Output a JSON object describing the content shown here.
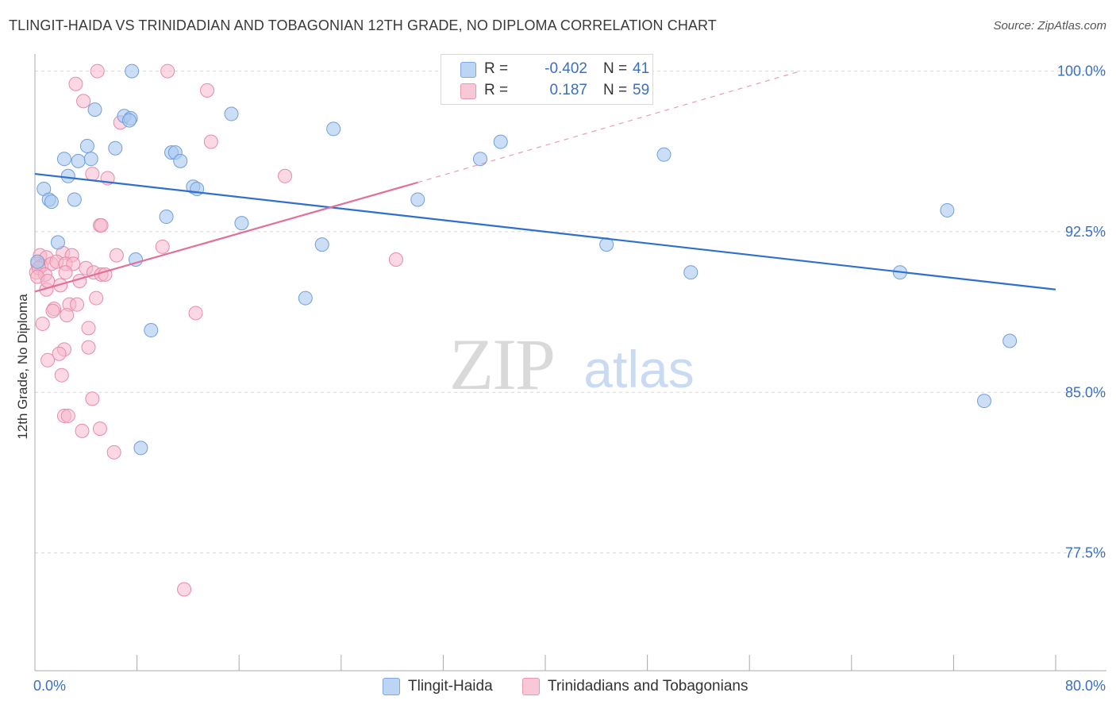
{
  "title": "TLINGIT-HAIDA VS TRINIDADIAN AND TOBAGONIAN 12TH GRADE, NO DIPLOMA CORRELATION CHART",
  "source": "Source: ZipAtlas.com",
  "watermark": {
    "zip": "ZIP",
    "atlas": "atlas"
  },
  "legend": {
    "r_label": "R =",
    "n_label": "N =",
    "series1": {
      "r": "-0.402",
      "n": "41"
    },
    "series2": {
      "r": "0.187",
      "n": "59"
    }
  },
  "colors": {
    "series1_fill": "#a8c8f0",
    "series1_stroke": "#6f9fdc",
    "series1_line": "#2e6fcf",
    "series2_fill": "#f7b8cc",
    "series2_stroke": "#e88aa8",
    "series2_line": "#e0709a",
    "axis_label": "#3a6fc4",
    "grid": "#d8d8d8"
  },
  "chart_data": {
    "type": "scatter",
    "title": "TLINGIT-HAIDA VS TRINIDADIAN AND TOBAGONIAN 12TH GRADE, NO DIPLOMA CORRELATION CHART",
    "xlabel": "",
    "ylabel": "12th Grade, No Diploma",
    "xlim": [
      0,
      80
    ],
    "ylim": [
      72.0,
      100.8
    ],
    "x_tick_labels": [
      {
        "value": 0,
        "label": "0.0%"
      },
      {
        "value": 80,
        "label": "80.0%"
      }
    ],
    "y_tick_labels": [
      {
        "value": 100.0,
        "label": "100.0%"
      },
      {
        "value": 92.5,
        "label": "92.5%"
      },
      {
        "value": 85.0,
        "label": "85.0%"
      },
      {
        "value": 77.5,
        "label": "77.5%"
      }
    ],
    "series": [
      {
        "name": "Tlingit-Haida",
        "r": -0.402,
        "n": 41,
        "trend": {
          "x": [
            0.0,
            80.0
          ],
          "y": [
            95.2,
            89.8
          ]
        },
        "points": [
          [
            7.6,
            100.0
          ],
          [
            4.7,
            98.2
          ],
          [
            7.0,
            97.9
          ],
          [
            7.5,
            97.8
          ],
          [
            7.4,
            97.7
          ],
          [
            15.4,
            98.0
          ],
          [
            23.4,
            97.3
          ],
          [
            36.5,
            96.7
          ],
          [
            6.3,
            96.4
          ],
          [
            4.1,
            96.5
          ],
          [
            10.7,
            96.2
          ],
          [
            11.0,
            96.2
          ],
          [
            2.3,
            95.9
          ],
          [
            3.4,
            95.8
          ],
          [
            4.4,
            95.9
          ],
          [
            11.4,
            95.8
          ],
          [
            34.9,
            95.9
          ],
          [
            49.3,
            96.1
          ],
          [
            2.6,
            95.1
          ],
          [
            12.4,
            94.6
          ],
          [
            12.7,
            94.5
          ],
          [
            0.7,
            94.5
          ],
          [
            1.1,
            94.0
          ],
          [
            1.3,
            93.9
          ],
          [
            3.1,
            94.0
          ],
          [
            30.0,
            94.0
          ],
          [
            71.5,
            93.5
          ],
          [
            10.3,
            93.2
          ],
          [
            16.2,
            92.9
          ],
          [
            1.8,
            92.0
          ],
          [
            22.5,
            91.9
          ],
          [
            44.8,
            91.9
          ],
          [
            7.9,
            91.2
          ],
          [
            51.4,
            90.6
          ],
          [
            67.8,
            90.6
          ],
          [
            21.2,
            89.4
          ],
          [
            9.1,
            87.9
          ],
          [
            76.4,
            87.4
          ],
          [
            74.4,
            84.6
          ],
          [
            8.3,
            82.4
          ],
          [
            0.2,
            91.1
          ]
        ]
      },
      {
        "name": "Trinidadians and Tobagonians",
        "r": 0.187,
        "n": 59,
        "trend": {
          "x": [
            0.0,
            30.0
          ],
          "y": [
            89.7,
            94.8
          ],
          "dashed_to": {
            "x": 60.0,
            "y": 100.0
          }
        },
        "points": [
          [
            4.9,
            100.0
          ],
          [
            10.4,
            100.0
          ],
          [
            3.2,
            99.4
          ],
          [
            13.5,
            99.1
          ],
          [
            3.8,
            98.6
          ],
          [
            6.7,
            97.6
          ],
          [
            13.8,
            96.7
          ],
          [
            4.5,
            95.2
          ],
          [
            5.7,
            95.0
          ],
          [
            19.6,
            95.1
          ],
          [
            5.1,
            92.8
          ],
          [
            5.2,
            92.8
          ],
          [
            10.0,
            91.8
          ],
          [
            0.4,
            91.4
          ],
          [
            0.9,
            91.3
          ],
          [
            2.2,
            91.5
          ],
          [
            2.9,
            91.4
          ],
          [
            6.4,
            91.4
          ],
          [
            28.3,
            91.2
          ],
          [
            0.2,
            91.0
          ],
          [
            0.5,
            90.9
          ],
          [
            1.3,
            91.0
          ],
          [
            1.7,
            91.1
          ],
          [
            2.4,
            91.0
          ],
          [
            3.0,
            91.0
          ],
          [
            0.1,
            90.6
          ],
          [
            0.3,
            90.8
          ],
          [
            0.8,
            90.5
          ],
          [
            2.4,
            90.6
          ],
          [
            4.0,
            90.8
          ],
          [
            4.6,
            90.6
          ],
          [
            5.2,
            90.5
          ],
          [
            5.5,
            90.5
          ],
          [
            0.9,
            89.8
          ],
          [
            4.8,
            89.4
          ],
          [
            1.5,
            88.9
          ],
          [
            1.4,
            88.8
          ],
          [
            2.7,
            89.1
          ],
          [
            2.5,
            88.6
          ],
          [
            3.3,
            89.1
          ],
          [
            12.6,
            88.7
          ],
          [
            4.2,
            88.0
          ],
          [
            0.6,
            88.2
          ],
          [
            4.2,
            87.1
          ],
          [
            2.3,
            87.0
          ],
          [
            1.9,
            86.8
          ],
          [
            1.0,
            86.5
          ],
          [
            2.1,
            85.8
          ],
          [
            4.5,
            84.7
          ],
          [
            2.3,
            83.9
          ],
          [
            2.6,
            83.9
          ],
          [
            3.7,
            83.2
          ],
          [
            5.1,
            83.3
          ],
          [
            6.2,
            82.2
          ],
          [
            11.7,
            75.8
          ],
          [
            0.2,
            90.4
          ],
          [
            1.0,
            90.2
          ],
          [
            2.0,
            90.0
          ],
          [
            3.5,
            90.2
          ]
        ]
      }
    ]
  }
}
